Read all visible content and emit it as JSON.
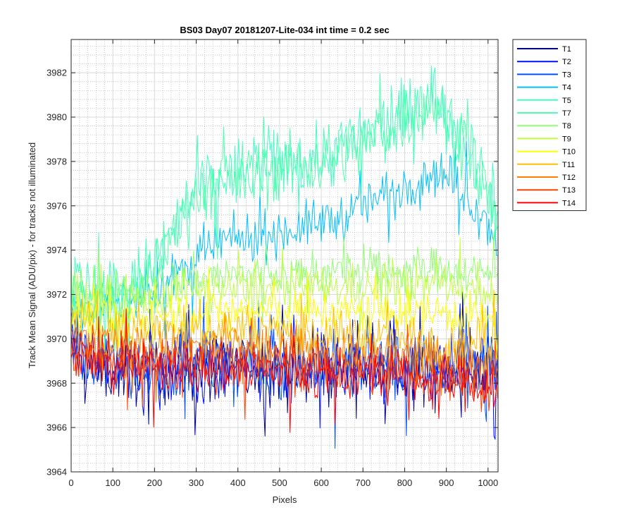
{
  "chart_data": {
    "type": "line",
    "title": "BS03 Day07 20181207-Lite-034 int time = 0.2 sec",
    "xlabel": "Pixels",
    "ylabel": "Track Mean Signal (ADU/pix) - for tracks not illuminated",
    "xlim": [
      0,
      1024
    ],
    "ylim": [
      3964,
      3983.5
    ],
    "xticks": [
      0,
      100,
      200,
      300,
      400,
      500,
      600,
      700,
      800,
      900,
      1000
    ],
    "yticks": [
      3964,
      3966,
      3968,
      3970,
      3972,
      3974,
      3976,
      3978,
      3980,
      3982
    ],
    "grid": true,
    "minor_grid": true,
    "legend_position": "outside-top-right",
    "series": [
      {
        "name": "T1",
        "color": "#00008f",
        "base": [
          [
            0,
            3970
          ],
          [
            50,
            3968.6
          ],
          [
            1024,
            3968.6
          ]
        ],
        "amp": 1.4
      },
      {
        "name": "T2",
        "color": "#0010ff",
        "base": [
          [
            0,
            3970
          ],
          [
            50,
            3968.7
          ],
          [
            1024,
            3968.6
          ]
        ],
        "amp": 1.4
      },
      {
        "name": "T3",
        "color": "#0050ff",
        "base": [
          [
            0,
            3970
          ],
          [
            50,
            3968.8
          ],
          [
            1024,
            3968.7
          ]
        ],
        "amp": 1.4
      },
      {
        "name": "T4",
        "color": "#00c0ff",
        "base": [
          [
            0,
            3971.5
          ],
          [
            60,
            3971.2
          ],
          [
            150,
            3971.8
          ],
          [
            250,
            3972.8
          ],
          [
            350,
            3974.3
          ],
          [
            500,
            3974.8
          ],
          [
            650,
            3975.5
          ],
          [
            800,
            3977
          ],
          [
            880,
            3977.6
          ],
          [
            950,
            3976.5
          ],
          [
            1024,
            3974.5
          ]
        ],
        "amp": 1.0
      },
      {
        "name": "T5",
        "color": "#40ffbf",
        "base": [
          [
            0,
            3972.5
          ],
          [
            60,
            3972
          ],
          [
            150,
            3972.4
          ],
          [
            200,
            3973.3
          ],
          [
            300,
            3976.8
          ],
          [
            450,
            3977.8
          ],
          [
            600,
            3978.2
          ],
          [
            750,
            3979.5
          ],
          [
            870,
            3981
          ],
          [
            950,
            3979
          ],
          [
            1024,
            3975.5
          ]
        ],
        "amp": 1.5
      },
      {
        "name": "T7",
        "color": "#4fffaf",
        "base": [
          [
            0,
            3972.4
          ],
          [
            60,
            3971.9
          ],
          [
            150,
            3972.3
          ],
          [
            200,
            3973.2
          ],
          [
            300,
            3976.6
          ],
          [
            450,
            3977.6
          ],
          [
            600,
            3978
          ],
          [
            750,
            3979.3
          ],
          [
            870,
            3980.8
          ],
          [
            950,
            3978.8
          ],
          [
            1024,
            3975.3
          ]
        ],
        "amp": 1.4
      },
      {
        "name": "T8",
        "color": "#8fff70",
        "base": [
          [
            0,
            3972
          ],
          [
            100,
            3972
          ],
          [
            300,
            3972.8
          ],
          [
            600,
            3973
          ],
          [
            900,
            3973.2
          ],
          [
            1024,
            3972.8
          ]
        ],
        "amp": 0.9
      },
      {
        "name": "T9",
        "color": "#bfff40",
        "base": [
          [
            0,
            3971.5
          ],
          [
            100,
            3971.5
          ],
          [
            300,
            3972.2
          ],
          [
            600,
            3972.3
          ],
          [
            900,
            3972.5
          ],
          [
            1024,
            3972
          ]
        ],
        "amp": 0.9
      },
      {
        "name": "T10",
        "color": "#ffff00",
        "base": [
          [
            0,
            3971
          ],
          [
            100,
            3970.8
          ],
          [
            300,
            3971.3
          ],
          [
            600,
            3971.2
          ],
          [
            900,
            3971.2
          ],
          [
            1024,
            3970.8
          ]
        ],
        "amp": 0.9
      },
      {
        "name": "T11",
        "color": "#ffbf00",
        "base": [
          [
            0,
            3970.8
          ],
          [
            100,
            3970.3
          ],
          [
            400,
            3970.5
          ],
          [
            800,
            3970
          ],
          [
            1024,
            3969.8
          ]
        ],
        "amp": 1.0
      },
      {
        "name": "T12",
        "color": "#ff8000",
        "base": [
          [
            0,
            3970.2
          ],
          [
            100,
            3969.6
          ],
          [
            400,
            3969.6
          ],
          [
            800,
            3969.2
          ],
          [
            1024,
            3969
          ]
        ],
        "amp": 1.0
      },
      {
        "name": "T13",
        "color": "#ff4000",
        "base": [
          [
            0,
            3969.6
          ],
          [
            100,
            3969
          ],
          [
            400,
            3969
          ],
          [
            800,
            3968.5
          ],
          [
            1024,
            3968.3
          ]
        ],
        "amp": 1.1
      },
      {
        "name": "T14",
        "color": "#ff0000",
        "base": [
          [
            0,
            3969.2
          ],
          [
            100,
            3968.8
          ],
          [
            400,
            3968.6
          ],
          [
            800,
            3968.2
          ],
          [
            1024,
            3968
          ]
        ],
        "amp": 1.1
      }
    ]
  }
}
